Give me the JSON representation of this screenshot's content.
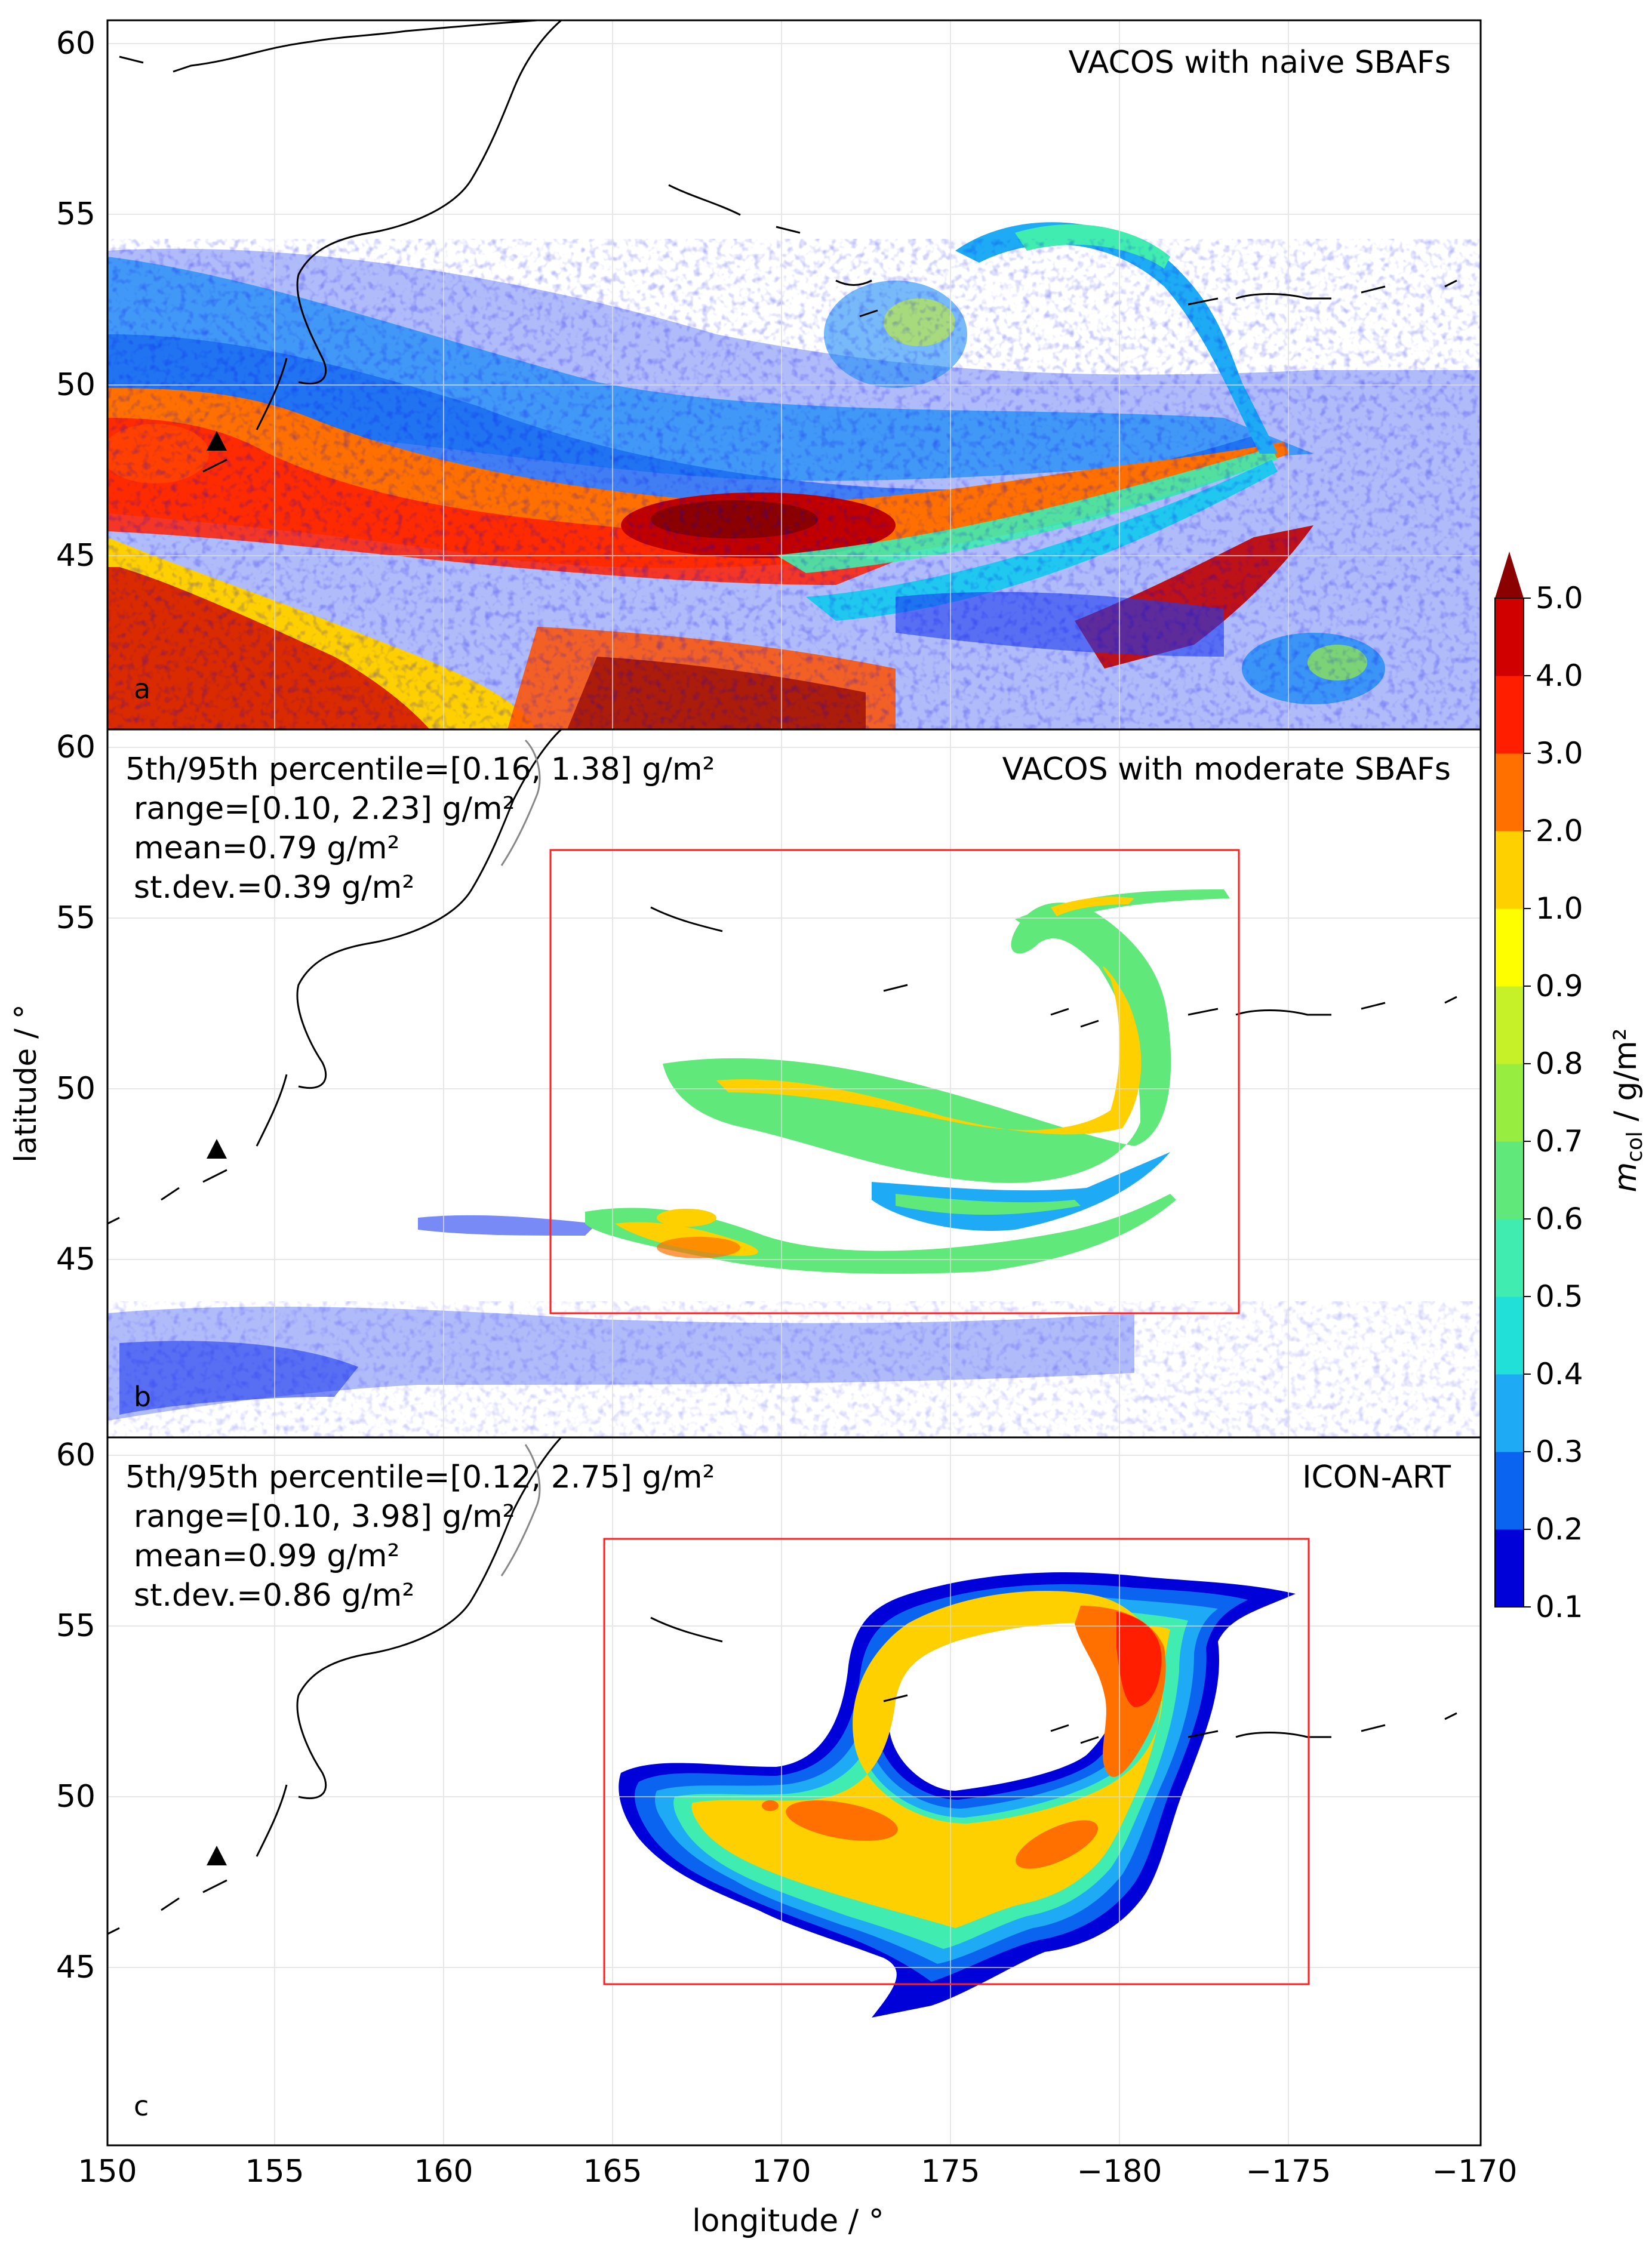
{
  "panels": [
    {
      "letter": "a",
      "label": "VACOS with naive SBAFs",
      "stats": []
    },
    {
      "letter": "b",
      "label": "VACOS with moderate SBAFs",
      "stats": [
        "5th/95th percentile=[0.16, 1.38] g/m²",
        "range=[0.10, 2.23] g/m²",
        "mean=0.79 g/m²",
        "st.dev.=0.39 g/m²"
      ]
    },
    {
      "letter": "c",
      "label": "ICON-ART",
      "stats": [
        "5th/95th percentile=[0.12, 2.75] g/m²",
        "range=[0.10, 3.98] g/m²",
        "mean=0.99 g/m²",
        "st.dev.=0.86 g/m²"
      ]
    }
  ],
  "axes": {
    "xlabel": "longitude / °",
    "ylabel": "latitude / °",
    "x_ticks": [
      "150",
      "155",
      "160",
      "165",
      "170",
      "175",
      "−180",
      "−175",
      "−170"
    ],
    "y_ticks": [
      "60",
      "55",
      "50",
      "45"
    ]
  },
  "colorbar": {
    "label_main": "m",
    "label_sub": "col",
    "label_unit": " / g/m²",
    "ticks": [
      "0.1",
      "0.2",
      "0.3",
      "0.4",
      "0.5",
      "0.6",
      "0.7",
      "0.8",
      "0.9",
      "1.0",
      "2.0",
      "3.0",
      "4.0",
      "5.0"
    ],
    "colors": [
      "#0000d8",
      "#0a64f0",
      "#1eaaf5",
      "#20e0d8",
      "#40ecb0",
      "#60e87a",
      "#98ee40",
      "#c6f028",
      "#fffe00",
      "#ffd000",
      "#ff7000",
      "#ff1e00",
      "#d10000",
      "#8b0000"
    ]
  },
  "volcano_marker": "triangle",
  "colors": {
    "box": "#ff2020",
    "coast": "#000000",
    "grid": "#dddddd"
  }
}
